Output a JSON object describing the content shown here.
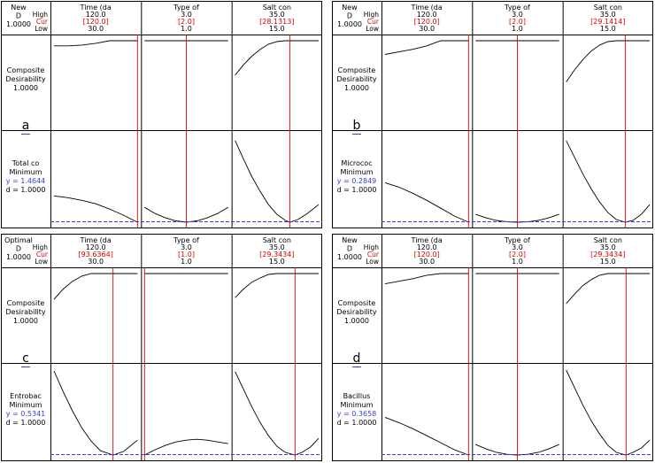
{
  "panels": [
    {
      "letter": "a",
      "corner": [
        "New",
        "D",
        "1.0000"
      ],
      "row_labels": {
        "high": "High",
        "cur": "Cur",
        "low": "Low"
      },
      "factors": [
        {
          "name": "Time (da",
          "high": "120.0",
          "cur": "[120.0]",
          "low": "30.0",
          "cur_value": 120.0
        },
        {
          "name": "Type of",
          "high": "3.0",
          "cur": "[2.0]",
          "low": "1.0",
          "cur_value": 2.0
        },
        {
          "name": "Salt con",
          "high": "35.0",
          "cur": "[28.1313]",
          "low": "15.0",
          "cur_value": 28.1313
        }
      ],
      "composite": {
        "line1": "Composite",
        "line2": "Desirability",
        "value": "1.0000"
      },
      "response": {
        "name": "Total co",
        "goal": "Minimum",
        "y": "y = 1.4644",
        "d": "d = 1.0000"
      }
    },
    {
      "letter": "b",
      "corner": [
        "New",
        "D",
        "1.0000"
      ],
      "row_labels": {
        "high": "High",
        "cur": "Cur",
        "low": "Low"
      },
      "factors": [
        {
          "name": "Time (da",
          "high": "120.0",
          "cur": "[120.0]",
          "low": "30.0",
          "cur_value": 120.0
        },
        {
          "name": "Type of",
          "high": "3.0",
          "cur": "[2.0]",
          "low": "1.0",
          "cur_value": 2.0
        },
        {
          "name": "Salt con",
          "high": "35.0",
          "cur": "[29.1414]",
          "low": "15.0",
          "cur_value": 29.1414
        }
      ],
      "composite": {
        "line1": "Composite",
        "line2": "Desirability",
        "value": "1.0000"
      },
      "response": {
        "name": "Micrococ",
        "goal": "Minimum",
        "y": "y = 0.2849",
        "d": "d = 1.0000"
      }
    },
    {
      "letter": "c",
      "corner": [
        "Optimal",
        "D",
        "1.0000"
      ],
      "row_labels": {
        "high": "High",
        "cur": "Cur",
        "low": "Low"
      },
      "factors": [
        {
          "name": "Time (da",
          "high": "120.0",
          "cur": "[93.6364]",
          "low": "30.0",
          "cur_value": 93.6364
        },
        {
          "name": "Type of",
          "high": "3.0",
          "cur": "[1.0]",
          "low": "1.0",
          "cur_value": 1.0
        },
        {
          "name": "Salt con",
          "high": "35.0",
          "cur": "[29.3434]",
          "low": "15.0",
          "cur_value": 29.3434
        }
      ],
      "composite": {
        "line1": "Composite",
        "line2": "Desirability",
        "value": "1.0000"
      },
      "response": {
        "name": "Entrobac",
        "goal": "Minimum",
        "y": "y = 0.5341",
        "d": "d = 1.0000"
      }
    },
    {
      "letter": "d",
      "corner": [
        "New",
        "D",
        "1.0000"
      ],
      "row_labels": {
        "high": "High",
        "cur": "Cur",
        "low": "Low"
      },
      "factors": [
        {
          "name": "Time (da",
          "high": "120.0",
          "cur": "[120.0]",
          "low": "30.0",
          "cur_value": 120.0
        },
        {
          "name": "Type of",
          "high": "3.0",
          "cur": "[2.0]",
          "low": "1.0",
          "cur_value": 2.0
        },
        {
          "name": "Salt con",
          "high": "35.0",
          "cur": "[29.3434]",
          "low": "15.0",
          "cur_value": 29.3434
        }
      ],
      "composite": {
        "line1": "Composite",
        "line2": "Desirability",
        "value": "1.0000"
      },
      "response": {
        "name": "Bacillus",
        "goal": "Minimum",
        "y": "y = 0.3658",
        "d": "d = 1.0000"
      }
    }
  ],
  "colors": {
    "frame": "#000000",
    "cur": "#e00000",
    "target": "#3b3bd6",
    "curve": "#000000",
    "text": "#000000"
  },
  "chart_data": [
    {
      "type": "line",
      "panel": "a",
      "series": [
        {
          "row": "composite",
          "factor": "time",
          "x": [
            30,
            45,
            60,
            75,
            90,
            105,
            120
          ],
          "y": [
            0.94,
            0.94,
            0.95,
            0.97,
            1.0,
            1.0,
            1.0
          ]
        },
        {
          "row": "composite",
          "factor": "type",
          "x": [
            1,
            1.5,
            2,
            2.5,
            3
          ],
          "y": [
            1.0,
            1.0,
            1.0,
            1.0,
            1.0
          ]
        },
        {
          "row": "composite",
          "factor": "salt",
          "x": [
            15,
            17,
            19,
            21,
            23,
            25,
            27,
            28,
            35
          ],
          "y": [
            0.6,
            0.72,
            0.82,
            0.9,
            0.96,
            0.99,
            1.0,
            1.0,
            1.0
          ]
        },
        {
          "row": "response",
          "factor": "time",
          "x": [
            30,
            45,
            60,
            75,
            90,
            105,
            120
          ],
          "y": [
            0.3,
            0.28,
            0.25,
            0.21,
            0.15,
            0.08,
            0.0
          ]
        },
        {
          "row": "response",
          "factor": "type",
          "x": [
            1,
            1.25,
            1.5,
            1.75,
            2,
            2.25,
            2.5,
            2.75,
            3
          ],
          "y": [
            0.17,
            0.1,
            0.05,
            0.015,
            0.0,
            0.015,
            0.05,
            0.1,
            0.17
          ]
        },
        {
          "row": "response",
          "factor": "salt",
          "x": [
            15,
            17,
            19,
            21,
            23,
            25,
            27,
            28.13,
            30,
            32,
            35
          ],
          "y": [
            0.93,
            0.72,
            0.52,
            0.35,
            0.2,
            0.09,
            0.02,
            0.0,
            0.03,
            0.09,
            0.2
          ]
        }
      ]
    },
    {
      "type": "line",
      "panel": "b",
      "series": [
        {
          "row": "composite",
          "factor": "time",
          "x": [
            30,
            45,
            60,
            75,
            90,
            105,
            120
          ],
          "y": [
            0.84,
            0.87,
            0.9,
            0.94,
            1.0,
            1.0,
            1.0
          ]
        },
        {
          "row": "composite",
          "factor": "type",
          "x": [
            1,
            1.5,
            2,
            2.5,
            3
          ],
          "y": [
            1.0,
            1.0,
            1.0,
            1.0,
            1.0
          ]
        },
        {
          "row": "composite",
          "factor": "salt",
          "x": [
            15,
            17,
            19,
            21,
            23,
            25,
            27,
            29,
            35
          ],
          "y": [
            0.52,
            0.66,
            0.78,
            0.88,
            0.95,
            0.99,
            1.0,
            1.0,
            1.0
          ]
        },
        {
          "row": "response",
          "factor": "time",
          "x": [
            30,
            45,
            60,
            75,
            90,
            105,
            120
          ],
          "y": [
            0.45,
            0.4,
            0.33,
            0.25,
            0.16,
            0.07,
            0.0
          ]
        },
        {
          "row": "response",
          "factor": "type",
          "x": [
            1,
            1.25,
            1.5,
            1.75,
            2,
            2.25,
            2.5,
            2.75,
            3
          ],
          "y": [
            0.09,
            0.05,
            0.02,
            0.004,
            0.0,
            0.004,
            0.02,
            0.05,
            0.09
          ]
        },
        {
          "row": "response",
          "factor": "salt",
          "x": [
            15,
            17,
            19,
            21,
            23,
            25,
            27,
            29.14,
            31,
            33,
            35
          ],
          "y": [
            0.93,
            0.74,
            0.55,
            0.38,
            0.23,
            0.11,
            0.03,
            0.0,
            0.02,
            0.09,
            0.2
          ]
        }
      ]
    },
    {
      "type": "line",
      "panel": "c",
      "series": [
        {
          "row": "composite",
          "factor": "time",
          "x": [
            30,
            40,
            50,
            60,
            70,
            80,
            93.64,
            120
          ],
          "y": [
            0.7,
            0.82,
            0.91,
            0.97,
            1.0,
            1.0,
            1.0,
            1.0
          ]
        },
        {
          "row": "composite",
          "factor": "type",
          "x": [
            1,
            1.5,
            2,
            2.5,
            3
          ],
          "y": [
            1.0,
            1.0,
            1.0,
            1.0,
            1.0
          ]
        },
        {
          "row": "composite",
          "factor": "salt",
          "x": [
            15,
            17,
            19,
            21,
            23,
            25,
            27,
            29.34,
            35
          ],
          "y": [
            0.72,
            0.82,
            0.9,
            0.95,
            0.99,
            1.0,
            1.0,
            1.0,
            1.0
          ]
        },
        {
          "row": "response",
          "factor": "time",
          "x": [
            30,
            40,
            50,
            60,
            70,
            80,
            93.64,
            105,
            120
          ],
          "y": [
            0.96,
            0.72,
            0.5,
            0.31,
            0.16,
            0.05,
            0.0,
            0.04,
            0.17
          ]
        },
        {
          "row": "response",
          "factor": "type",
          "x": [
            1,
            1.25,
            1.5,
            1.75,
            2,
            2.25,
            2.5,
            2.75,
            3
          ],
          "y": [
            0.0,
            0.06,
            0.11,
            0.15,
            0.17,
            0.18,
            0.17,
            0.15,
            0.13
          ]
        },
        {
          "row": "response",
          "factor": "salt",
          "x": [
            15,
            17,
            19,
            21,
            23,
            25,
            27,
            29.34,
            31,
            33,
            35
          ],
          "y": [
            0.95,
            0.75,
            0.55,
            0.37,
            0.22,
            0.1,
            0.03,
            0.0,
            0.03,
            0.09,
            0.19
          ]
        }
      ]
    },
    {
      "type": "line",
      "panel": "d",
      "series": [
        {
          "row": "composite",
          "factor": "time",
          "x": [
            30,
            45,
            60,
            75,
            90,
            105,
            120
          ],
          "y": [
            0.88,
            0.91,
            0.94,
            0.98,
            1.0,
            1.0,
            1.0
          ]
        },
        {
          "row": "composite",
          "factor": "type",
          "x": [
            1,
            1.5,
            2,
            2.5,
            3
          ],
          "y": [
            1.0,
            1.0,
            1.0,
            1.0,
            1.0
          ]
        },
        {
          "row": "composite",
          "factor": "salt",
          "x": [
            15,
            17,
            19,
            21,
            23,
            25,
            27,
            29.34,
            35
          ],
          "y": [
            0.65,
            0.76,
            0.86,
            0.93,
            0.98,
            1.0,
            1.0,
            1.0,
            1.0
          ]
        },
        {
          "row": "response",
          "factor": "time",
          "x": [
            30,
            45,
            60,
            75,
            90,
            105,
            120
          ],
          "y": [
            0.43,
            0.37,
            0.3,
            0.22,
            0.14,
            0.06,
            0.0
          ]
        },
        {
          "row": "response",
          "factor": "type",
          "x": [
            1,
            1.25,
            1.5,
            1.75,
            2,
            2.25,
            2.5,
            2.75,
            3
          ],
          "y": [
            0.12,
            0.07,
            0.03,
            0.008,
            0.0,
            0.008,
            0.03,
            0.07,
            0.12
          ]
        },
        {
          "row": "response",
          "factor": "salt",
          "x": [
            15,
            17,
            19,
            21,
            23,
            25,
            27,
            29.34,
            31,
            33,
            35
          ],
          "y": [
            0.97,
            0.77,
            0.57,
            0.39,
            0.24,
            0.11,
            0.03,
            0.0,
            0.03,
            0.08,
            0.17
          ]
        }
      ]
    }
  ]
}
